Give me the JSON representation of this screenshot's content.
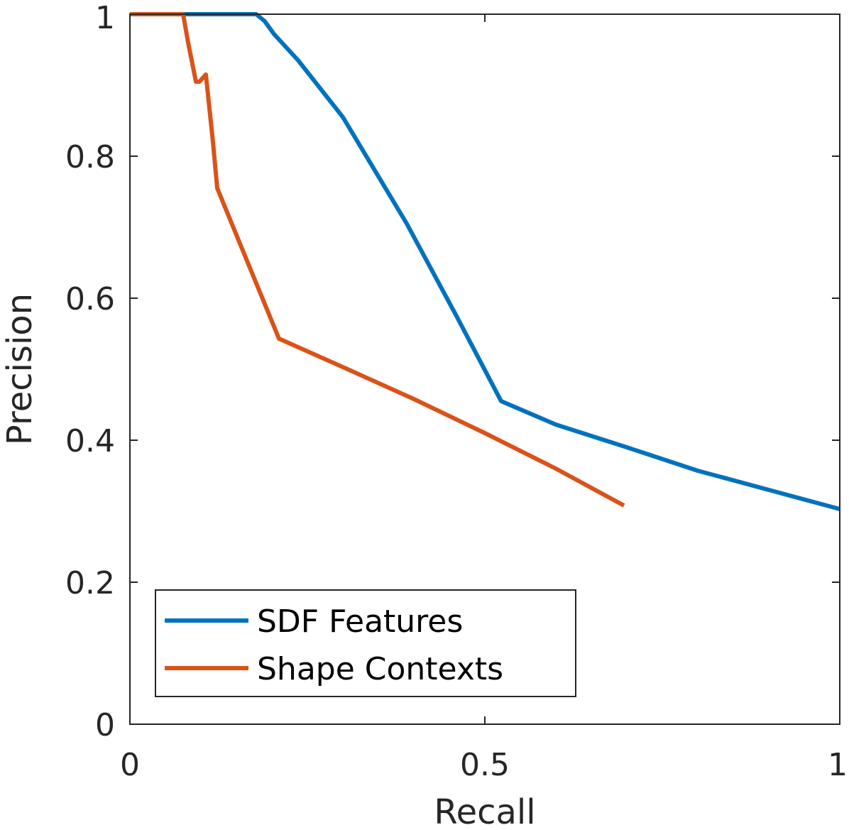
{
  "chart_data": {
    "type": "line",
    "xlabel": "Recall",
    "ylabel": "Precision",
    "xlim": [
      0,
      1
    ],
    "ylim": [
      0,
      1
    ],
    "xticks": [
      {
        "value": 0,
        "label": "0"
      },
      {
        "value": 0.5,
        "label": "0.5"
      },
      {
        "value": 1,
        "label": "1"
      }
    ],
    "yticks": [
      {
        "value": 0,
        "label": "0"
      },
      {
        "value": 0.2,
        "label": "0.2"
      },
      {
        "value": 0.4,
        "label": "0.4"
      },
      {
        "value": 0.6,
        "label": "0.6"
      },
      {
        "value": 0.8,
        "label": "0.8"
      },
      {
        "value": 1,
        "label": "1"
      }
    ],
    "grid": false,
    "legend_position": "bottom-left",
    "series": [
      {
        "name": "SDF Features",
        "color": "#0072BD",
        "points": [
          [
            0,
            1
          ],
          [
            0.178,
            1
          ],
          [
            0.19,
            0.99
          ],
          [
            0.203,
            0.972
          ],
          [
            0.237,
            0.935
          ],
          [
            0.3,
            0.855
          ],
          [
            0.39,
            0.705
          ],
          [
            0.46,
            0.575
          ],
          [
            0.523,
            0.455
          ],
          [
            0.6,
            0.422
          ],
          [
            0.7,
            0.39
          ],
          [
            0.8,
            0.357
          ],
          [
            0.9,
            0.33
          ],
          [
            1.0,
            0.303
          ]
        ]
      },
      {
        "name": "Shape Contexts",
        "color": "#D95319",
        "points": [
          [
            0,
            1
          ],
          [
            0.075,
            1
          ],
          [
            0.082,
            0.96
          ],
          [
            0.093,
            0.905
          ],
          [
            0.098,
            0.905
          ],
          [
            0.107,
            0.915
          ],
          [
            0.117,
            0.82
          ],
          [
            0.123,
            0.755
          ],
          [
            0.21,
            0.543
          ],
          [
            0.3,
            0.503
          ],
          [
            0.4,
            0.458
          ],
          [
            0.5,
            0.41
          ],
          [
            0.6,
            0.36
          ],
          [
            0.696,
            0.308
          ]
        ]
      }
    ]
  }
}
